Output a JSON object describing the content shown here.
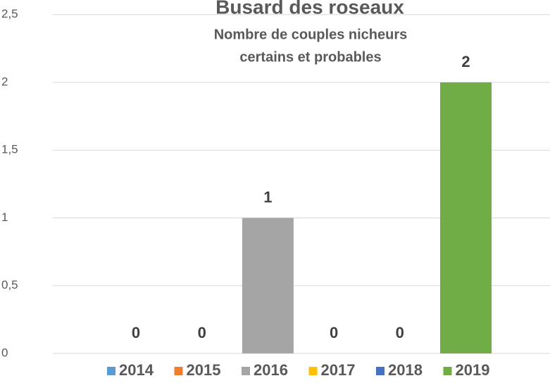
{
  "chart_data": {
    "type": "bar",
    "title": "Busard des roseaux",
    "subtitle": [
      "Nombre de couples nicheurs",
      "certains et probables"
    ],
    "series": [
      {
        "name": "2014",
        "color": "#5b9bd5",
        "values": [
          0
        ]
      },
      {
        "name": "2015",
        "color": "#ed7d31",
        "values": [
          0
        ]
      },
      {
        "name": "2016",
        "color": "#a5a5a5",
        "values": [
          1
        ]
      },
      {
        "name": "2017",
        "color": "#ffc000",
        "values": [
          0
        ]
      },
      {
        "name": "2018",
        "color": "#4472c4",
        "values": [
          0
        ]
      },
      {
        "name": "2019",
        "color": "#70ad47",
        "values": [
          2
        ]
      }
    ],
    "ylim": [
      0,
      2.5
    ],
    "yticks": [
      0,
      {
        "value": 0.5,
        "label": "0,5"
      },
      1,
      {
        "value": 1.5,
        "label": "1,5"
      },
      2,
      {
        "value": 2.5,
        "label": "2,5"
      }
    ],
    "grid": true,
    "legend": "bottom"
  }
}
